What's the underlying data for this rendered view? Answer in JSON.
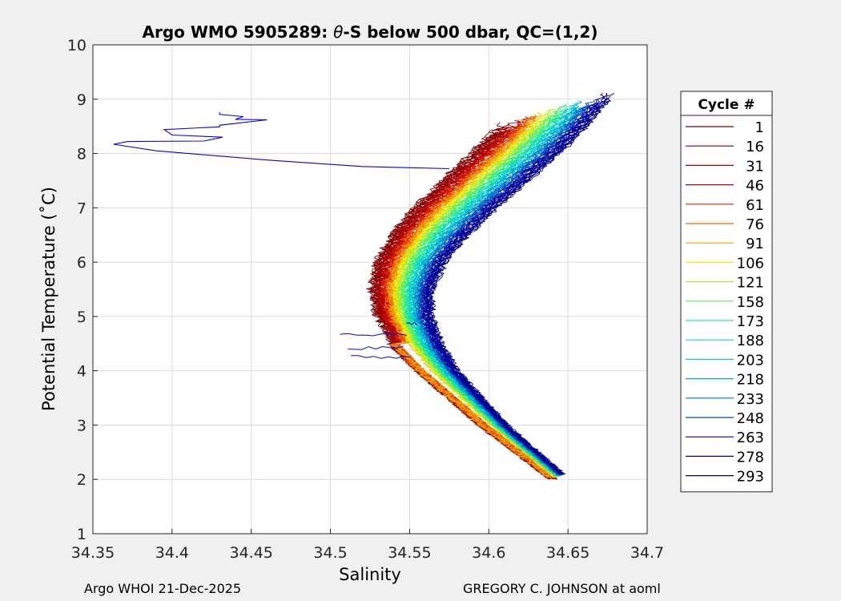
{
  "footer": {
    "left": "Argo WHOI 21-Dec-2025",
    "right": "GREGORY C. JOHNSON at aoml"
  },
  "colors": {
    "page_background": "#f0f0f0",
    "plot_background": "#ffffff",
    "grid": "#dcdcdc",
    "outlier_profile": "#0000ff"
  },
  "chart_data": {
    "type": "line",
    "title_prefix": "Argo WMO 5905289: ",
    "title_symbol": "θ",
    "title_suffix": "-S below 500 dbar,  QC=(1,2)",
    "xlabel": "Salinity",
    "ylabel": "Potential Temperature (˚C)",
    "xlim": [
      34.35,
      34.7
    ],
    "ylim": [
      1,
      10
    ],
    "grid": true,
    "xticks": [
      "34.35",
      "34.4",
      "34.45",
      "34.5",
      "34.55",
      "34.6",
      "34.65",
      "34.7"
    ],
    "yticks": [
      "1",
      "2",
      "3",
      "4",
      "5",
      "6",
      "7",
      "8",
      "9",
      "10"
    ],
    "legend_title": "Cycle #",
    "legend_position": "right-outside",
    "legend": [
      {
        "label": "1",
        "color": "#800000"
      },
      {
        "label": "16",
        "color": "#8f0000"
      },
      {
        "label": "31",
        "color": "#a30000"
      },
      {
        "label": "46",
        "color": "#c00000"
      },
      {
        "label": "61",
        "color": "#dd2200"
      },
      {
        "label": "76",
        "color": "#ee6600"
      },
      {
        "label": "91",
        "color": "#eeaa00"
      },
      {
        "label": "106",
        "color": "#eeee00"
      },
      {
        "label": "121",
        "color": "#aaee22"
      },
      {
        "label": "158",
        "color": "#66ee55"
      },
      {
        "label": "173",
        "color": "#33ee88"
      },
      {
        "label": "188",
        "color": "#11ddaa"
      },
      {
        "label": "203",
        "color": "#00ccdd"
      },
      {
        "label": "218",
        "color": "#00aacc"
      },
      {
        "label": "233",
        "color": "#0077cc"
      },
      {
        "label": "248",
        "color": "#0044bb"
      },
      {
        "label": "263",
        "color": "#0000aa"
      },
      {
        "label": "278",
        "color": "#00009a"
      },
      {
        "label": "293",
        "color": "#00008a"
      }
    ],
    "profile_envelope": {
      "description": "Theta-S curves for each cycle; salinity minimum near 5.3 C",
      "inner_theta": [
        2.0,
        3.0,
        4.0,
        4.5,
        5.0,
        5.5,
        6.0,
        6.5,
        7.0,
        7.5,
        8.0,
        8.5,
        9.0
      ],
      "inner_salinity": [
        34.64,
        34.595,
        34.555,
        34.538,
        34.528,
        34.524,
        34.527,
        34.536,
        34.55,
        34.568,
        34.586,
        34.604,
        34.62
      ],
      "outer_theta": [
        2.1,
        3.0,
        4.0,
        4.5,
        5.0,
        5.5,
        6.0,
        6.5,
        7.0,
        7.5,
        8.0,
        8.5,
        9.2
      ],
      "outer_salinity": [
        34.658,
        34.62,
        34.585,
        34.572,
        34.566,
        34.567,
        34.575,
        34.59,
        34.608,
        34.628,
        34.648,
        34.665,
        34.685
      ]
    },
    "outlier_profile": {
      "cycle": "anomalous upper segment",
      "salinity": [
        34.575,
        34.52,
        34.46,
        34.39,
        34.363,
        34.372,
        34.42,
        34.432,
        34.4,
        34.395,
        34.43,
        34.43,
        34.46,
        34.44,
        34.445,
        34.43,
        34.43
      ],
      "theta": [
        7.72,
        7.76,
        7.88,
        8.05,
        8.17,
        8.22,
        8.23,
        8.3,
        8.34,
        8.44,
        8.49,
        8.52,
        8.62,
        8.63,
        8.68,
        8.72,
        8.76
      ]
    },
    "intrusions": [
      {
        "theta": 4.67,
        "salinity_start": 34.506,
        "salinity_end": 34.548
      },
      {
        "theta": 4.42,
        "salinity_start": 34.511,
        "salinity_end": 34.546
      },
      {
        "theta": 4.25,
        "salinity_start": 34.513,
        "salinity_end": 34.551
      },
      {
        "theta": 4.87,
        "salinity_start": 34.548,
        "salinity_end": 34.555
      }
    ]
  }
}
